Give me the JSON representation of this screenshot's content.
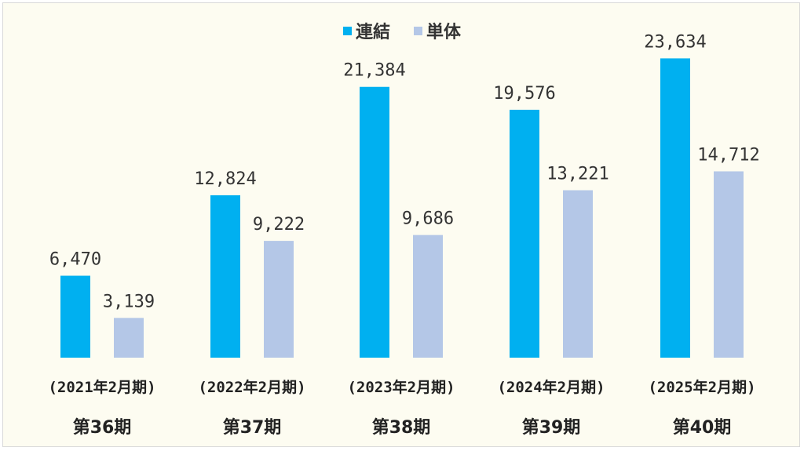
{
  "chart_data": {
    "type": "bar",
    "categories": [
      "(2021年2月期)",
      "(2022年2月期)",
      "(2023年2月期)",
      "(2024年2月期)",
      "(2025年2月期)"
    ],
    "periods": [
      "第36期",
      "第37期",
      "第38期",
      "第39期",
      "第40期"
    ],
    "series": [
      {
        "name": "連結",
        "color": "#00b0f0",
        "values": [
          6470,
          12824,
          21384,
          19576,
          23634
        ],
        "labels": [
          "6,470",
          "12,824",
          "21,384",
          "19,576",
          "23,634"
        ]
      },
      {
        "name": "単体",
        "color": "#b4c7e7",
        "values": [
          3139,
          9222,
          9686,
          13221,
          14712
        ],
        "labels": [
          "3,139",
          "9,222",
          "9,686",
          "13,221",
          "14,712"
        ]
      }
    ],
    "ylim": [
      0,
      27500
    ],
    "grid": false,
    "legend_position": "top-center"
  }
}
